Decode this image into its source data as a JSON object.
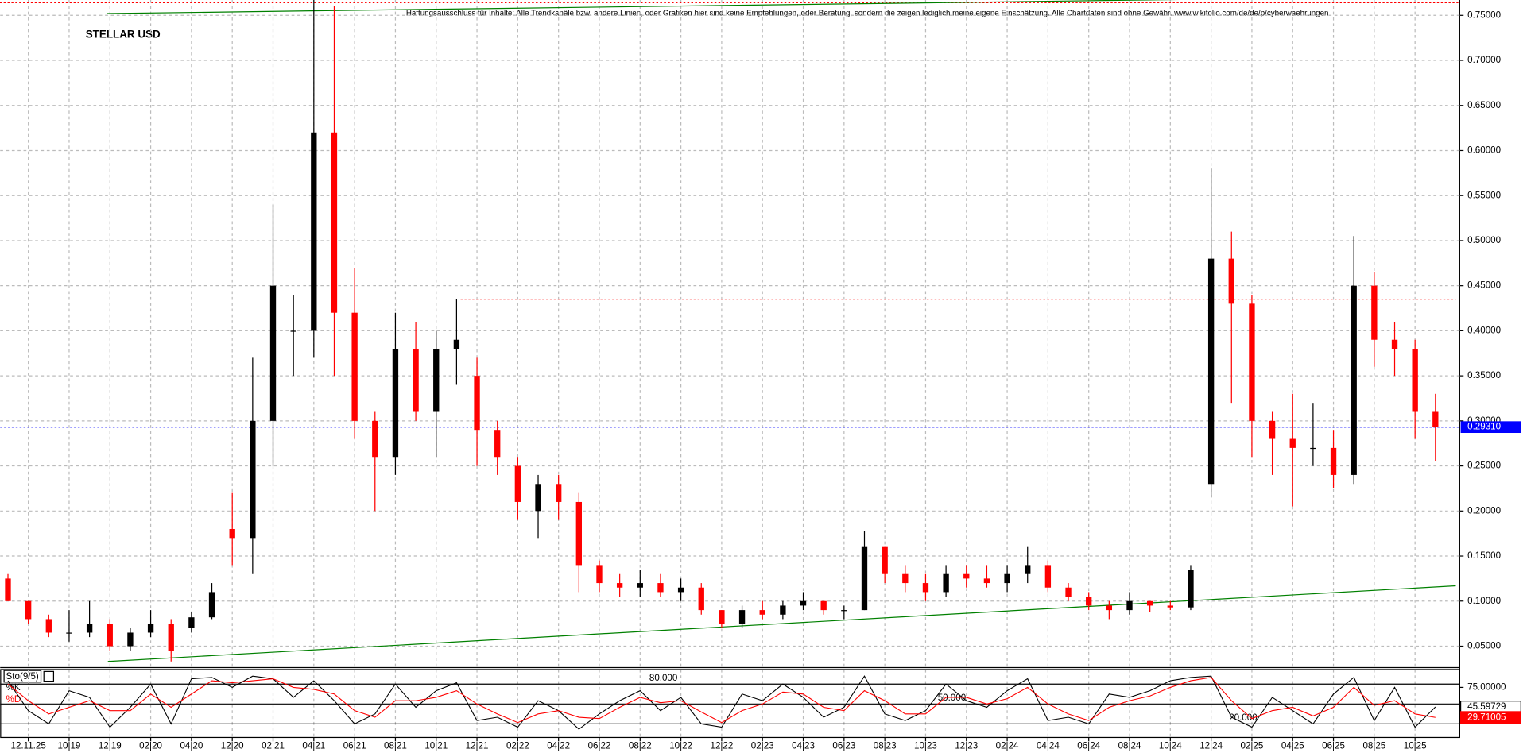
{
  "chart_data": [
    {
      "type": "candlestick",
      "title": "STELLAR USD",
      "subtitle": "Haftungsausschluss für Inhalte: Alle Trendkanäle bzw. andere Linien, oder Grafiken hier sind keine Empfehlungen, oder Beratung, sondern die zeigen lediglich meine eigene Einschätzung. Alle Chartdaten sind ohne Gewähr. www.wikifolio.com/de/de/p/cyberwaehrungen",
      "categories": [
        null,
        "12.11.25",
        null,
        "10|19",
        null,
        "12|19",
        null,
        "02|20",
        null,
        "04|20",
        null,
        "12|20",
        null,
        "02|21",
        null,
        "04|21",
        null,
        "06|21",
        null,
        "08|21",
        null,
        "10|21",
        null,
        "12|21",
        null,
        "02|22",
        null,
        "04|22",
        null,
        "06|22",
        null,
        "08|22",
        null,
        "10|22",
        null,
        "12|22",
        null,
        "02|23",
        null,
        "04|23",
        null,
        "06|23",
        null,
        "08|23",
        null,
        "10|23",
        null,
        "12|23",
        null,
        "02|24",
        null,
        "04|24",
        null,
        "06|24",
        null,
        "08|24",
        null,
        "10|24",
        null,
        "12|24",
        null,
        "02|25",
        null,
        "04|25",
        null,
        "06|25",
        null,
        "08|25",
        null,
        "10|25",
        null
      ],
      "ohlc": [
        [
          0.125,
          0.13,
          0.1,
          0.1
        ],
        [
          0.1,
          0.1,
          0.075,
          0.08
        ],
        [
          0.08,
          0.085,
          0.06,
          0.065
        ],
        [
          0.065,
          0.09,
          0.055,
          0.065
        ],
        [
          0.065,
          0.1,
          0.06,
          0.075
        ],
        [
          0.075,
          0.08,
          0.045,
          0.05
        ],
        [
          0.05,
          0.07,
          0.045,
          0.065
        ],
        [
          0.065,
          0.09,
          0.06,
          0.075
        ],
        [
          0.075,
          0.08,
          0.033,
          0.045
        ],
        [
          0.07,
          0.088,
          0.065,
          0.082
        ],
        [
          0.082,
          0.12,
          0.08,
          0.11
        ],
        [
          0.18,
          0.22,
          0.14,
          0.17
        ],
        [
          0.17,
          0.37,
          0.13,
          0.3
        ],
        [
          0.3,
          0.54,
          0.25,
          0.45
        ],
        [
          0.4,
          0.44,
          0.35,
          0.4
        ],
        [
          0.4,
          0.77,
          0.37,
          0.62
        ],
        [
          0.62,
          0.76,
          0.35,
          0.42
        ],
        [
          0.42,
          0.47,
          0.28,
          0.3
        ],
        [
          0.3,
          0.31,
          0.2,
          0.26
        ],
        [
          0.26,
          0.42,
          0.24,
          0.38
        ],
        [
          0.38,
          0.41,
          0.3,
          0.31
        ],
        [
          0.31,
          0.4,
          0.26,
          0.38
        ],
        [
          0.38,
          0.435,
          0.34,
          0.39
        ],
        [
          0.35,
          0.37,
          0.25,
          0.29
        ],
        [
          0.29,
          0.3,
          0.24,
          0.26
        ],
        [
          0.25,
          0.26,
          0.19,
          0.21
        ],
        [
          0.2,
          0.24,
          0.17,
          0.23
        ],
        [
          0.23,
          0.24,
          0.19,
          0.21
        ],
        [
          0.21,
          0.22,
          0.11,
          0.14
        ],
        [
          0.14,
          0.145,
          0.11,
          0.12
        ],
        [
          0.12,
          0.13,
          0.105,
          0.115
        ],
        [
          0.115,
          0.135,
          0.105,
          0.12
        ],
        [
          0.12,
          0.13,
          0.105,
          0.11
        ],
        [
          0.11,
          0.125,
          0.1,
          0.115
        ],
        [
          0.115,
          0.12,
          0.085,
          0.09
        ],
        [
          0.09,
          0.09,
          0.07,
          0.075
        ],
        [
          0.075,
          0.095,
          0.07,
          0.09
        ],
        [
          0.09,
          0.1,
          0.08,
          0.085
        ],
        [
          0.085,
          0.1,
          0.08,
          0.095
        ],
        [
          0.095,
          0.11,
          0.09,
          0.1
        ],
        [
          0.1,
          0.1,
          0.085,
          0.09
        ],
        [
          0.09,
          0.095,
          0.08,
          0.09
        ],
        [
          0.09,
          0.178,
          0.09,
          0.16
        ],
        [
          0.16,
          0.16,
          0.12,
          0.13
        ],
        [
          0.13,
          0.14,
          0.11,
          0.12
        ],
        [
          0.12,
          0.13,
          0.1,
          0.11
        ],
        [
          0.11,
          0.14,
          0.105,
          0.13
        ],
        [
          0.13,
          0.14,
          0.115,
          0.125
        ],
        [
          0.125,
          0.14,
          0.115,
          0.12
        ],
        [
          0.12,
          0.14,
          0.11,
          0.13
        ],
        [
          0.13,
          0.16,
          0.12,
          0.14
        ],
        [
          0.14,
          0.145,
          0.11,
          0.115
        ],
        [
          0.115,
          0.12,
          0.1,
          0.105
        ],
        [
          0.105,
          0.11,
          0.09,
          0.095
        ],
        [
          0.095,
          0.1,
          0.08,
          0.09
        ],
        [
          0.09,
          0.11,
          0.085,
          0.1
        ],
        [
          0.1,
          0.1,
          0.088,
          0.095
        ],
        [
          0.095,
          0.1,
          0.09,
          0.093
        ],
        [
          0.093,
          0.14,
          0.09,
          0.135
        ],
        [
          0.23,
          0.58,
          0.215,
          0.48
        ],
        [
          0.48,
          0.51,
          0.32,
          0.43
        ],
        [
          0.43,
          0.44,
          0.26,
          0.3
        ],
        [
          0.3,
          0.31,
          0.24,
          0.28
        ],
        [
          0.28,
          0.33,
          0.205,
          0.27
        ],
        [
          0.27,
          0.32,
          0.25,
          0.27
        ],
        [
          0.27,
          0.29,
          0.225,
          0.24
        ],
        [
          0.24,
          0.505,
          0.23,
          0.45
        ],
        [
          0.45,
          0.465,
          0.36,
          0.39
        ],
        [
          0.39,
          0.41,
          0.35,
          0.38
        ],
        [
          0.38,
          0.39,
          0.28,
          0.31
        ],
        [
          0.31,
          0.33,
          0.255,
          0.2931
        ]
      ],
      "up_color": "#000000",
      "down_color": "#ff0000",
      "ylim": [
        0.0262,
        0.767
      ],
      "yticks": [
        {
          "value": 0.05,
          "label": "0.05000"
        },
        {
          "value": 0.1,
          "label": "0.10000"
        },
        {
          "value": 0.15,
          "label": "0.15000"
        },
        {
          "value": 0.2,
          "label": "0.20000"
        },
        {
          "value": 0.25,
          "label": "0.25000"
        },
        {
          "value": 0.3,
          "label": "0.30000"
        },
        {
          "value": 0.35,
          "label": "0.35000"
        },
        {
          "value": 0.4,
          "label": "0.40000"
        },
        {
          "value": 0.45,
          "label": "0.45000"
        },
        {
          "value": 0.5,
          "label": "0.50000"
        },
        {
          "value": 0.55,
          "label": "0.55000"
        },
        {
          "value": 0.6,
          "label": "0.60000"
        },
        {
          "value": 0.65,
          "label": "0.65000"
        },
        {
          "value": 0.7,
          "label": "0.70000"
        },
        {
          "value": 0.75,
          "label": "0.75000"
        }
      ],
      "grid": true,
      "current_price": {
        "value": 0.2931,
        "label": "0.29310",
        "color": "#0000ff"
      },
      "trendlines": [
        {
          "color": "#008000",
          "x": [
            4.9,
            71
          ],
          "y": [
            0.033,
            0.117
          ]
        },
        {
          "color": "#008000",
          "x": [
            4.85,
            65.8
          ],
          "y": [
            0.752,
            0.77
          ]
        }
      ],
      "levels": [
        {
          "color": "#ff0000",
          "x": [
            22.2,
            71
          ],
          "y": 0.435
        },
        {
          "color": "#ff0000",
          "x": [
            -0.4,
            71.2
          ],
          "y": 0.764
        }
      ]
    },
    {
      "type": "line",
      "title": "Sto(9/5)",
      "series": [
        {
          "name": "%K",
          "color": "#000000",
          "values": [
            85,
            40,
            20,
            70,
            60,
            15,
            45,
            80,
            20,
            88,
            90,
            75,
            92,
            88,
            60,
            85,
            55,
            20,
            35,
            80,
            45,
            70,
            82,
            25,
            30,
            15,
            55,
            40,
            12,
            35,
            55,
            70,
            40,
            60,
            20,
            15,
            65,
            55,
            80,
            60,
            30,
            45,
            92,
            35,
            25,
            40,
            80,
            55,
            45,
            70,
            88,
            25,
            30,
            20,
            65,
            60,
            70,
            85,
            90,
            92,
            30,
            15,
            60,
            40,
            20,
            65,
            90,
            25,
            75,
            15,
            45.59729
          ]
        },
        {
          "name": "%D",
          "color": "#ff0000",
          "values": [
            80,
            55,
            35,
            45,
            55,
            40,
            40,
            65,
            45,
            65,
            85,
            82,
            85,
            88,
            75,
            72,
            65,
            40,
            30,
            55,
            55,
            60,
            70,
            50,
            35,
            22,
            35,
            40,
            30,
            28,
            45,
            60,
            52,
            55,
            38,
            22,
            40,
            50,
            68,
            65,
            45,
            40,
            70,
            55,
            35,
            35,
            60,
            60,
            50,
            58,
            75,
            50,
            35,
            25,
            45,
            55,
            62,
            75,
            85,
            90,
            55,
            28,
            40,
            45,
            32,
            45,
            75,
            48,
            55,
            35,
            29.71005
          ]
        }
      ],
      "ylim": [
        0,
        100
      ],
      "yticks": [
        {
          "value": 75,
          "label": "75.00000"
        }
      ],
      "levels": [
        {
          "value": 80,
          "label": "80.000"
        },
        {
          "value": 50,
          "label": "50.000"
        },
        {
          "value": 20,
          "label": "20.000"
        }
      ]
    }
  ]
}
